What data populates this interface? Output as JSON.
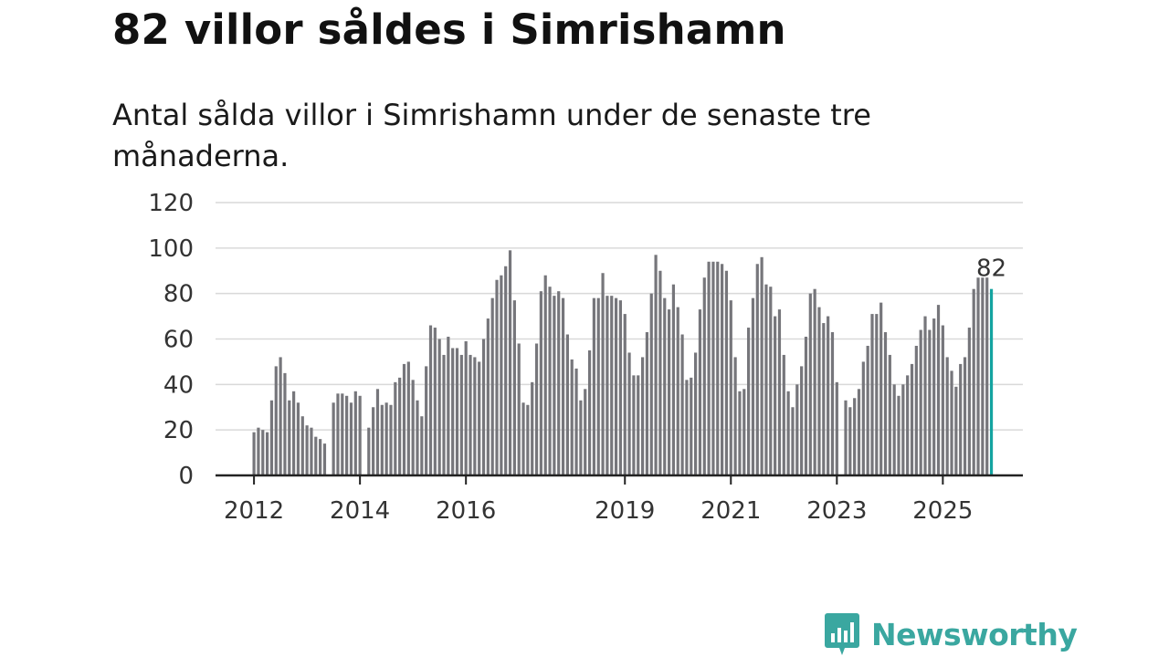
{
  "title": "82 villor såldes i Simrishamn",
  "subtitle": "Antal sålda villor i Simrishamn under de senaste tre månaderna.",
  "brand": {
    "name": "Newsworthy",
    "icon": "newsworthy-logo-icon",
    "color": "#3aa7a0"
  },
  "colors": {
    "bar": "#76767b",
    "highlight": "#14a3a0",
    "grid": "#d9d9d9",
    "axis": "#222222"
  },
  "chart_data": {
    "type": "bar",
    "title": "82 villor såldes i Simrishamn",
    "xlabel": "",
    "ylabel": "",
    "ylim": [
      0,
      120
    ],
    "yticks": [
      0,
      20,
      40,
      60,
      80,
      100,
      120
    ],
    "grid": true,
    "legend": "none",
    "start": "2012-01",
    "xtick_labels": [
      {
        "label": "2012",
        "index": 0
      },
      {
        "label": "2014",
        "index": 24
      },
      {
        "label": "2016",
        "index": 48
      },
      {
        "label": "2019",
        "index": 84
      },
      {
        "label": "2021",
        "index": 108
      },
      {
        "label": "2023",
        "index": 132
      },
      {
        "label": "2025",
        "index": 156
      }
    ],
    "values": [
      19,
      21,
      20,
      19,
      33,
      48,
      52,
      45,
      33,
      37,
      32,
      26,
      22,
      21,
      17,
      16,
      14,
      null,
      32,
      36,
      36,
      35,
      32,
      37,
      35,
      null,
      21,
      30,
      38,
      31,
      32,
      31,
      41,
      43,
      49,
      50,
      42,
      33,
      26,
      48,
      66,
      65,
      60,
      53,
      61,
      56,
      56,
      53,
      59,
      53,
      52,
      50,
      60,
      69,
      78,
      86,
      88,
      92,
      99,
      77,
      58,
      32,
      31,
      41,
      58,
      81,
      88,
      83,
      79,
      81,
      78,
      62,
      51,
      47,
      33,
      38,
      55,
      78,
      78,
      89,
      79,
      79,
      78,
      77,
      71,
      54,
      44,
      44,
      52,
      63,
      80,
      97,
      90,
      78,
      73,
      84,
      74,
      62,
      42,
      43,
      54,
      73,
      87,
      94,
      94,
      94,
      93,
      90,
      77,
      52,
      37,
      38,
      65,
      78,
      93,
      96,
      84,
      83,
      70,
      73,
      53,
      37,
      30,
      40,
      48,
      61,
      80,
      82,
      74,
      67,
      70,
      63,
      41,
      null,
      33,
      30,
      34,
      38,
      50,
      57,
      71,
      71,
      76,
      63,
      53,
      40,
      35,
      40,
      44,
      49,
      57,
      64,
      70,
      64,
      69,
      75,
      66,
      52,
      46,
      39,
      49,
      52,
      65,
      82,
      87,
      87,
      87,
      82
    ],
    "highlight": {
      "index": 167,
      "value": 82,
      "label": "82"
    }
  }
}
